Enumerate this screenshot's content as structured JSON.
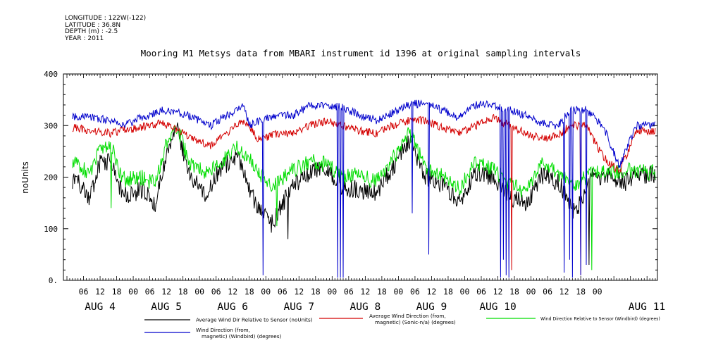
{
  "header": {
    "lines": [
      "LONGITUDE : 122W(-122)",
      "LATITUDE : 36.8N",
      "DEPTH (m) : -2.5",
      "YEAR : 2011"
    ]
  },
  "colors": {
    "black_series": "#000000",
    "red_series": "#d40000",
    "green_series": "#00dd00",
    "blue_series": "#0000cc"
  },
  "chart_data": {
    "type": "line",
    "title": "Mooring M1 Metsys data from MBARI instrument id 1396 at original sampling intervals",
    "ylabel": "noUnits",
    "xlabel": "",
    "ylim": [
      0,
      400
    ],
    "y_ticks": [
      "0.",
      "100",
      "200",
      "300",
      "400"
    ],
    "x_hour_ticks": [
      "06",
      "12",
      "18",
      "00",
      "06",
      "12",
      "18",
      "00",
      "06",
      "12",
      "18",
      "00",
      "06",
      "12",
      "18",
      "00",
      "06",
      "12",
      "18",
      "00",
      "06",
      "12",
      "18",
      "00",
      "06",
      "12",
      "18",
      "00",
      "06",
      "12",
      "18",
      "00"
    ],
    "x_day_labels": [
      "AUG  4",
      "AUG  5",
      "AUG  6",
      "AUG  7",
      "AUG  8",
      "AUG  9",
      "AUG 10",
      "AUG 11"
    ],
    "grid": false,
    "legend": [
      {
        "label": "Average Wind Dir Relative to Sensor (noUnits)",
        "color": "#000000"
      },
      {
        "label": "Average Wind Direction (from,",
        "label2": "magnetic) (Sonic-n/a) (degrees)",
        "color": "#d40000"
      },
      {
        "label": "Wind Direction Relative to Sensor (Windbird) (degrees)",
        "color": "#00dd00"
      },
      {
        "label": "Wind Direction (from,",
        "label2": "magnetic) (Windbird) (degrees)",
        "color": "#0000cc"
      }
    ],
    "series_keypoints": {
      "note_units": "x in hours since AUG 4 00:00, y in data units",
      "blue": [
        [
          4,
          318
        ],
        [
          10,
          315
        ],
        [
          16,
          310
        ],
        [
          20,
          300
        ],
        [
          28,
          318
        ],
        [
          34,
          330
        ],
        [
          40,
          325
        ],
        [
          46,
          315
        ],
        [
          52,
          300
        ],
        [
          58,
          320
        ],
        [
          64,
          340
        ],
        [
          66,
          300
        ],
        [
          70,
          310
        ],
        [
          76,
          320
        ],
        [
          82,
          320
        ],
        [
          88,
          340
        ],
        [
          94,
          340
        ],
        [
          100,
          335
        ],
        [
          106,
          320
        ],
        [
          112,
          310
        ],
        [
          118,
          325
        ],
        [
          124,
          340
        ],
        [
          130,
          345
        ],
        [
          136,
          330
        ],
        [
          142,
          315
        ],
        [
          148,
          340
        ],
        [
          154,
          340
        ],
        [
          160,
          330
        ],
        [
          166,
          320
        ],
        [
          172,
          305
        ],
        [
          178,
          300
        ],
        [
          182,
          330
        ],
        [
          188,
          330
        ],
        [
          194,
          300
        ],
        [
          200,
          220
        ],
        [
          206,
          300
        ]
      ],
      "red": [
        [
          4,
          295
        ],
        [
          10,
          290
        ],
        [
          16,
          285
        ],
        [
          20,
          290
        ],
        [
          28,
          298
        ],
        [
          34,
          305
        ],
        [
          40,
          290
        ],
        [
          46,
          275
        ],
        [
          52,
          260
        ],
        [
          58,
          285
        ],
        [
          64,
          310
        ],
        [
          70,
          270
        ],
        [
          76,
          285
        ],
        [
          82,
          285
        ],
        [
          88,
          300
        ],
        [
          94,
          310
        ],
        [
          100,
          300
        ],
        [
          106,
          290
        ],
        [
          112,
          285
        ],
        [
          118,
          300
        ],
        [
          124,
          310
        ],
        [
          130,
          310
        ],
        [
          136,
          295
        ],
        [
          142,
          285
        ],
        [
          148,
          300
        ],
        [
          154,
          315
        ],
        [
          160,
          300
        ],
        [
          166,
          285
        ],
        [
          172,
          275
        ],
        [
          178,
          280
        ],
        [
          182,
          300
        ],
        [
          188,
          300
        ],
        [
          194,
          240
        ],
        [
          200,
          210
        ],
        [
          206,
          290
        ]
      ],
      "green": [
        [
          4,
          225
        ],
        [
          8,
          205
        ],
        [
          12,
          260
        ],
        [
          16,
          260
        ],
        [
          20,
          195
        ],
        [
          28,
          200
        ],
        [
          32,
          185
        ],
        [
          36,
          265
        ],
        [
          40,
          300
        ],
        [
          44,
          230
        ],
        [
          50,
          210
        ],
        [
          56,
          230
        ],
        [
          62,
          260
        ],
        [
          68,
          220
        ],
        [
          74,
          180
        ],
        [
          82,
          215
        ],
        [
          88,
          230
        ],
        [
          94,
          225
        ],
        [
          100,
          200
        ],
        [
          106,
          205
        ],
        [
          112,
          190
        ],
        [
          118,
          235
        ],
        [
          124,
          285
        ],
        [
          130,
          220
        ],
        [
          136,
          205
        ],
        [
          142,
          175
        ],
        [
          148,
          230
        ],
        [
          154,
          215
        ],
        [
          160,
          190
        ],
        [
          166,
          170
        ],
        [
          172,
          225
        ],
        [
          178,
          205
        ],
        [
          184,
          185
        ],
        [
          190,
          210
        ],
        [
          196,
          210
        ],
        [
          202,
          215
        ],
        [
          206,
          210
        ]
      ],
      "black": [
        [
          4,
          195
        ],
        [
          8,
          155
        ],
        [
          12,
          230
        ],
        [
          16,
          230
        ],
        [
          20,
          165
        ],
        [
          28,
          175
        ],
        [
          32,
          150
        ],
        [
          36,
          240
        ],
        [
          40,
          290
        ],
        [
          44,
          210
        ],
        [
          50,
          165
        ],
        [
          56,
          220
        ],
        [
          62,
          240
        ],
        [
          68,
          150
        ],
        [
          74,
          110
        ],
        [
          82,
          185
        ],
        [
          88,
          210
        ],
        [
          94,
          215
        ],
        [
          100,
          180
        ],
        [
          106,
          175
        ],
        [
          112,
          170
        ],
        [
          118,
          220
        ],
        [
          124,
          270
        ],
        [
          130,
          200
        ],
        [
          136,
          185
        ],
        [
          142,
          150
        ],
        [
          148,
          210
        ],
        [
          154,
          200
        ],
        [
          160,
          165
        ],
        [
          166,
          145
        ],
        [
          172,
          205
        ],
        [
          178,
          190
        ],
        [
          184,
          130
        ],
        [
          190,
          205
        ],
        [
          196,
          200
        ],
        [
          202,
          190
        ],
        [
          206,
          205
        ]
      ]
    },
    "dropouts": [
      {
        "series": "blue",
        "x": 71,
        "y": 10
      },
      {
        "series": "blue",
        "x": 98,
        "y": 5
      },
      {
        "series": "blue",
        "x": 99,
        "y": 5
      },
      {
        "series": "blue",
        "x": 100,
        "y": 5
      },
      {
        "series": "blue",
        "x": 125,
        "y": 130
      },
      {
        "series": "blue",
        "x": 131,
        "y": 50
      },
      {
        "series": "blue",
        "x": 157,
        "y": 5
      },
      {
        "series": "blue",
        "x": 158,
        "y": 40
      },
      {
        "series": "blue",
        "x": 159,
        "y": 10
      },
      {
        "series": "blue",
        "x": 160,
        "y": 5
      },
      {
        "series": "red",
        "x": 161,
        "y": 20
      },
      {
        "series": "blue",
        "x": 180,
        "y": 15
      },
      {
        "series": "blue",
        "x": 182,
        "y": 40
      },
      {
        "series": "blue",
        "x": 183,
        "y": 5
      },
      {
        "series": "blue",
        "x": 186,
        "y": 10
      },
      {
        "series": "blue",
        "x": 188,
        "y": 30
      },
      {
        "series": "red",
        "x": 186,
        "y": 10
      },
      {
        "series": "green",
        "x": 190,
        "y": 20
      },
      {
        "series": "black",
        "x": 189,
        "y": 30
      },
      {
        "series": "green",
        "x": 16,
        "y": 140
      },
      {
        "series": "green",
        "x": 76,
        "y": 105
      },
      {
        "series": "black",
        "x": 80,
        "y": 80
      }
    ]
  }
}
